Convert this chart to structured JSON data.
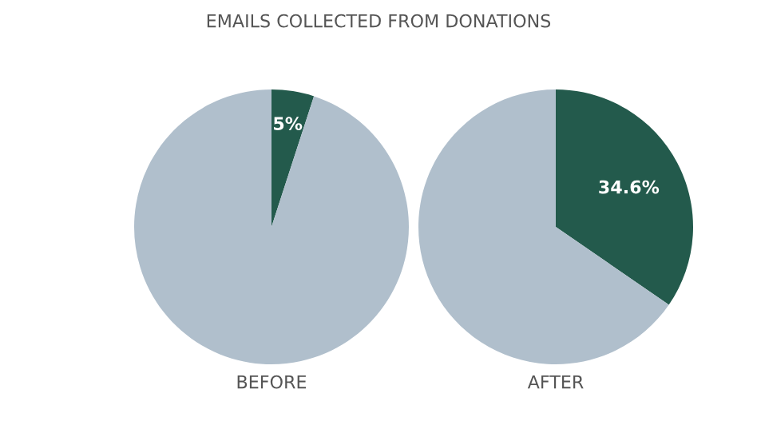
{
  "chart_data": [
    {
      "type": "pie",
      "title": "EMAILS COLLECTED FROM DONATIONS",
      "xlabel": "BEFORE",
      "categories": [
        null,
        null
      ],
      "values": [
        5,
        95
      ],
      "colors": [
        "#235a4c",
        "#b0bfcc"
      ],
      "value_labels": [
        "5%",
        null
      ]
    },
    {
      "type": "pie",
      "xlabel": "AFTER",
      "categories": [
        null,
        null
      ],
      "values": [
        34.6,
        65.4
      ],
      "colors": [
        "#235a4c",
        "#b0bfcc"
      ],
      "value_labels": [
        "34.6%",
        null
      ]
    }
  ]
}
